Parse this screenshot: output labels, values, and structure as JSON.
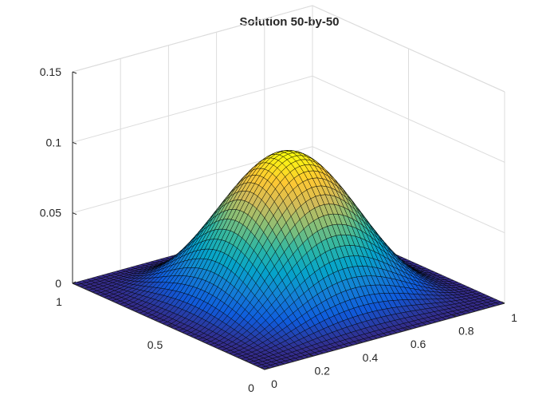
{
  "chart_data": {
    "type": "surface",
    "title": "Solution 50-by-50",
    "grid_size": [
      50,
      50
    ],
    "x": {
      "range": [
        0,
        1
      ],
      "ticks": [
        0,
        0.2,
        0.4,
        0.6,
        0.8,
        1
      ],
      "tick_labels": [
        "0",
        "0.2",
        "0.4",
        "0.6",
        "0.8",
        "1"
      ]
    },
    "y": {
      "range": [
        0,
        1
      ],
      "ticks": [
        0,
        0.5,
        1
      ],
      "tick_labels": [
        "0",
        "0.5",
        "1"
      ]
    },
    "z": {
      "range": [
        0,
        0.15
      ],
      "ticks": [
        0,
        0.05,
        0.1,
        0.15
      ],
      "tick_labels": [
        "0",
        "0.05",
        "0.1",
        "0.15"
      ]
    },
    "peak": {
      "x": 0.5,
      "y": 0.5,
      "z": 0.1
    },
    "grid": true,
    "colormap": "parula",
    "colormap_stops": [
      "#352a87",
      "#0f5cdd",
      "#1481d6",
      "#06a4ca",
      "#2eb7a4",
      "#87bf77",
      "#d1bb59",
      "#fec832",
      "#f9fb0e"
    ],
    "edge_color": "#000000"
  }
}
